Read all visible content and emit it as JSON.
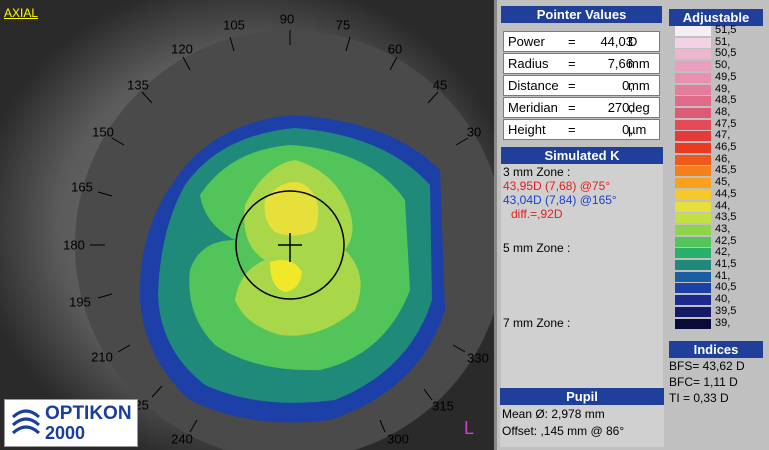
{
  "map": {
    "mode_label": "AXIAL",
    "degree_labels": [
      "90",
      "75",
      "60",
      "45",
      "30",
      "105",
      "120",
      "135",
      "150",
      "165",
      "180",
      "195",
      "210",
      "225",
      "240",
      "300",
      "315",
      "330"
    ],
    "logo_name": "OPTIKON",
    "logo_year": "2000",
    "corner_mark": "L"
  },
  "pointer_values": {
    "title": "Pointer Values",
    "rows": [
      {
        "key": "Power",
        "eq": "=",
        "value": "44,03",
        "unit": "D"
      },
      {
        "key": "Radius",
        "eq": "=",
        "value": "7,66",
        "unit": "mm"
      },
      {
        "key": "Distance",
        "eq": "=",
        "value": "0,",
        "unit": "mm"
      },
      {
        "key": "Meridian",
        "eq": "=",
        "value": "270,",
        "unit": "deg"
      },
      {
        "key": "Height",
        "eq": "=",
        "value": "0,",
        "unit": "µm"
      }
    ]
  },
  "simulated_k": {
    "title": "Simulated K",
    "zone3_label": "3 mm Zone :",
    "zone3_line1": "43,95D (7,68) @75°",
    "zone3_line2": "43,04D (7,84) @165°",
    "zone3_diff": "diff.=,92D",
    "zone5_label": "5 mm Zone :",
    "zone7_label": "7 mm Zone :"
  },
  "pupil": {
    "title": "Pupil",
    "mean": "Mean Ø: 2,978 mm",
    "offset": "Offset: ,145 mm @ 86°"
  },
  "scale": {
    "title": "Adjustable",
    "labels": [
      "51,5",
      "51,",
      "50,5",
      "50,",
      "49,5",
      "49,",
      "48,5",
      "48,",
      "47,5",
      "47,",
      "46,5",
      "46,",
      "45,5",
      "45,",
      "44,5",
      "44,",
      "43,5",
      "43,",
      "42,5",
      "42,",
      "41,5",
      "41,",
      "40,5",
      "40,",
      "39,5",
      "39,"
    ],
    "colors": [
      "#f7eef5",
      "#f2d2e4",
      "#edb6cf",
      "#e9a0bf",
      "#e890b0",
      "#e47c9c",
      "#e06a88",
      "#de5a75",
      "#e44a58",
      "#e53a3a",
      "#ea3a20",
      "#ef5a1c",
      "#f3801a",
      "#f7a21a",
      "#f5c92a",
      "#e8e03a",
      "#c3e044",
      "#8ed44a",
      "#52c45a",
      "#28b06a",
      "#1f8a7a",
      "#1a5fa0",
      "#1c3fa8",
      "#1a2a90",
      "#141a68",
      "#0a0a38"
    ],
    "highlight_colors": {
      "yellow": "#e8e03a",
      "green": "#52c45a",
      "teal": "#1f8a7a",
      "blue": "#1c3fa8"
    }
  },
  "indices": {
    "title": "Indices",
    "bfs": "BFS= 43,62 D",
    "bfc": "BFC= 1,11 D",
    "ti": "TI = 0,33 D"
  }
}
